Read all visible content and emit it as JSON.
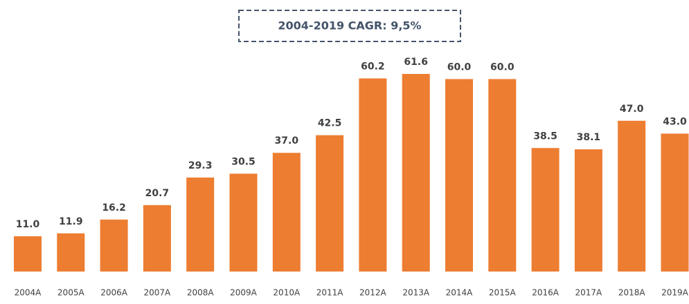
{
  "chart_data": {
    "type": "bar",
    "annotation": "2004-2019 CAGR: 9,5%",
    "categories": [
      "2004A",
      "2005A",
      "2006A",
      "2007A",
      "2008A",
      "2009A",
      "2010A",
      "2011A",
      "2012A",
      "2013A",
      "2014A",
      "2015A",
      "2016A",
      "2017A",
      "2018A",
      "2019A"
    ],
    "values": [
      11.0,
      11.9,
      16.2,
      20.7,
      29.3,
      30.5,
      37.0,
      42.5,
      60.2,
      61.6,
      60.0,
      60.0,
      38.5,
      38.1,
      47.0,
      43.0
    ],
    "value_labels": [
      "11.0",
      "11.9",
      "16.2",
      "20.7",
      "29.3",
      "30.5",
      "37.0",
      "42.5",
      "60.2",
      "61.6",
      "60.0",
      "60.0",
      "38.5",
      "38.1",
      "47.0",
      "43.0"
    ],
    "color": "#ed7d31",
    "ylim": [
      0,
      70
    ]
  }
}
